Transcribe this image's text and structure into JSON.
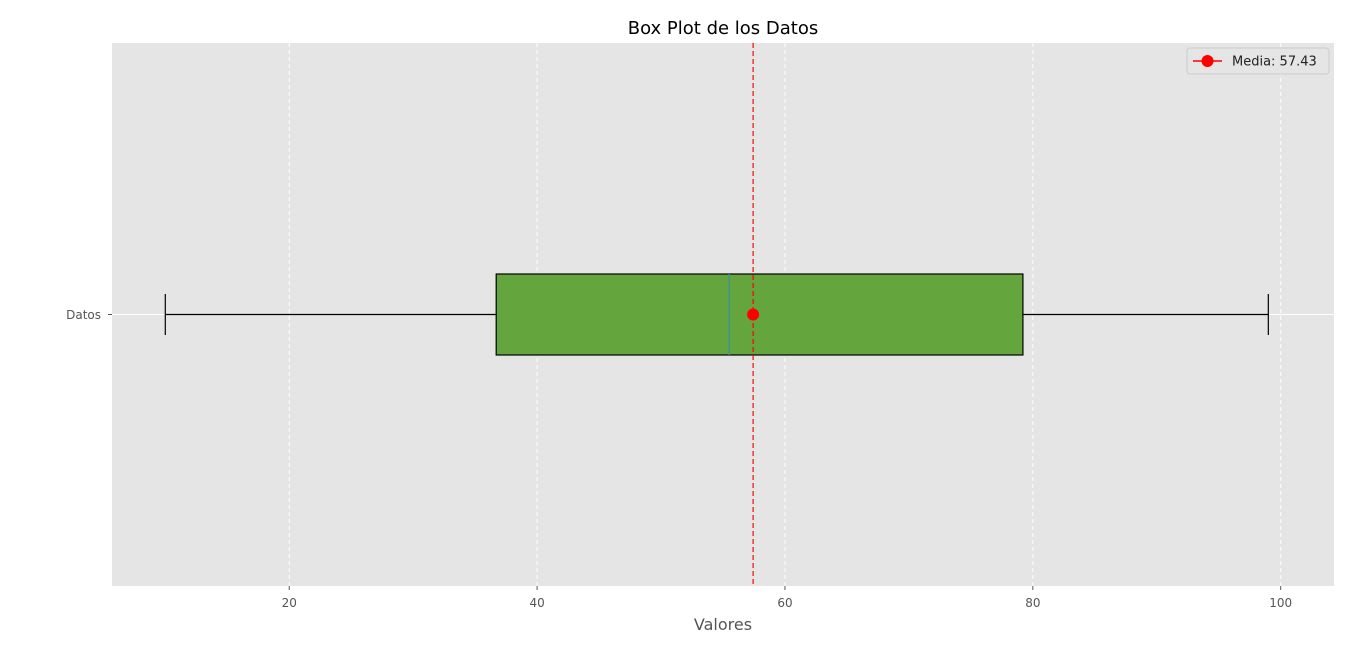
{
  "chart_data": {
    "type": "boxplot",
    "orientation": "horizontal",
    "title": "Box Plot de los Datos",
    "xlabel": "Valores",
    "ylabel": "",
    "xlim": [
      5.7,
      104.3
    ],
    "xticks": [
      20,
      40,
      60,
      80,
      100
    ],
    "grid": true,
    "legend_position": "top-right",
    "series": [
      {
        "label": "Datos",
        "whisker_low": 10.0,
        "q1": 36.7,
        "median": 55.5,
        "q3": 79.2,
        "whisker_high": 99.0,
        "mean": 57.43
      }
    ],
    "legend": [
      {
        "label": "Media: 57.43"
      }
    ],
    "colors": {
      "box_fill": "#64a53e",
      "median_line": "#3d8fa3",
      "mean": "#ff0000",
      "plot_bg": "#e5e5e5",
      "grid": "#ffffff"
    }
  }
}
